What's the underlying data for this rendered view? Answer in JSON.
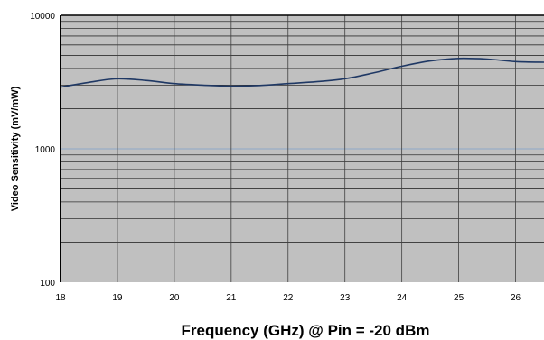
{
  "chart_data": {
    "type": "line",
    "title": "",
    "xlabel": "Frequency (GHz) @ Pin = -20 dBm",
    "ylabel": "Video Sensitivity (mV/mW)",
    "xlim": [
      18,
      26.5
    ],
    "ylim": [
      100,
      10000
    ],
    "yscale": "log",
    "x_ticks": [
      "18",
      "19",
      "20",
      "21",
      "22",
      "23",
      "24",
      "25",
      "26"
    ],
    "y_ticks": [
      "100",
      "1000",
      "10000"
    ],
    "grid": true,
    "legend": "none",
    "plot_bg": "#c0c0c0",
    "line_color": "#1f3864",
    "series": [
      {
        "x": [
          18,
          18.5,
          19,
          19.5,
          20,
          20.5,
          21,
          21.5,
          22,
          22.5,
          23,
          23.5,
          24,
          24.5,
          25,
          25.5,
          26,
          26.5
        ],
        "y": [
          2900,
          3150,
          3350,
          3250,
          3080,
          3000,
          2950,
          2980,
          3080,
          3180,
          3350,
          3700,
          4150,
          4550,
          4750,
          4700,
          4500,
          4450
        ]
      }
    ]
  }
}
